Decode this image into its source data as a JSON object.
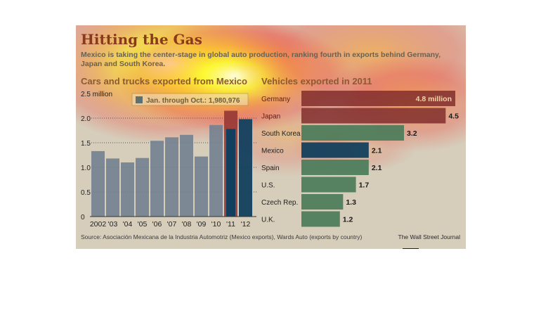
{
  "title": "Hitting the Gas",
  "subtitle": "Mexico is taking the center-stage in global auto production, ranking fourth in exports behind Germany, Japan and South Korea.",
  "source": "Source:  Asociación Mexicana de la Industria Automotriz (Mexico exports), Wards Auto (exports by country)",
  "publisher": "The Wall Street Journal",
  "colors": {
    "bar_gray": "#6f7f90",
    "mexico_blue": "#123f5e",
    "country_green": "#4f7d5c",
    "highlight_red": "#7e2a2a",
    "highlight_red_light": "#9b3b38",
    "card_background": "#d6cdbb"
  },
  "chart_data": [
    {
      "type": "bar",
      "title": "Cars and trucks exported from Mexico",
      "categories": [
        "2002",
        "'03",
        "'04",
        "'05",
        "'06",
        "'07",
        "'08",
        "'09",
        "'10",
        "'11",
        "'12"
      ],
      "values": [
        1.33,
        1.18,
        1.1,
        1.19,
        1.54,
        1.61,
        1.66,
        1.22,
        1.86,
        2.15,
        1.98
      ],
      "comparison_values": {
        "'11": 1.78
      },
      "ylim": [
        0,
        2.5
      ],
      "yticks": [
        "0",
        "0.5",
        "1.0",
        "1.5",
        "2.0",
        "2.5 million"
      ],
      "grid": true,
      "legend": "Jan. through Oct.: 1,980,976",
      "legend_placement": "top"
    },
    {
      "type": "bar",
      "orientation": "horizontal",
      "title": "Vehicles exported in 2011",
      "categories": [
        "Germany",
        "Japan",
        "South Korea",
        "Mexico",
        "Spain",
        "U.S.",
        "Czech Rep.",
        "U.K."
      ],
      "values": [
        4.8,
        4.5,
        3.2,
        2.1,
        2.1,
        1.7,
        1.3,
        1.2
      ],
      "data_labels": [
        "4.8 million",
        "4.5",
        "3.2",
        "2.1",
        "2.1",
        "1.7",
        "1.3",
        "1.2"
      ]
    }
  ]
}
